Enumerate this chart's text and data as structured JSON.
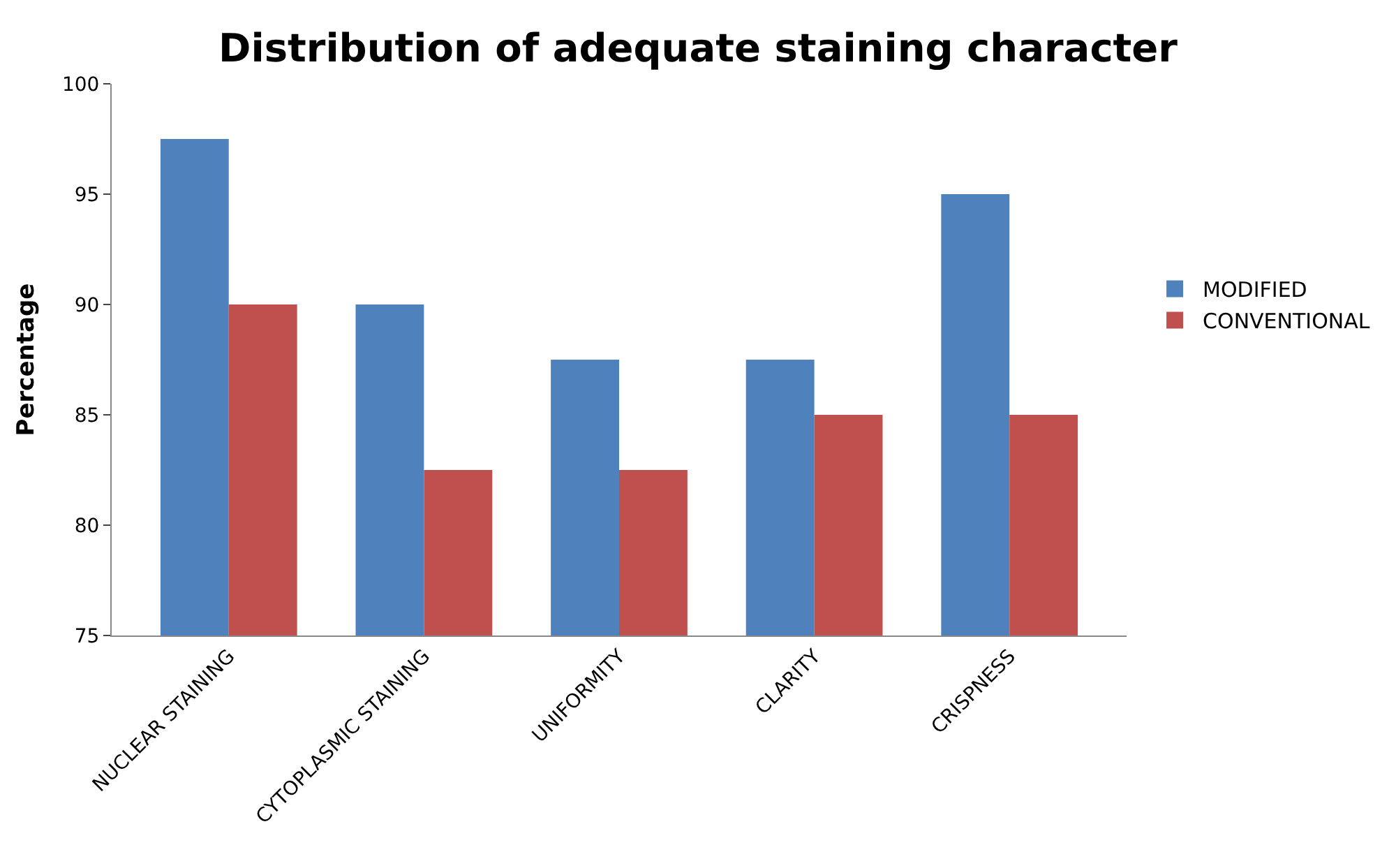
{
  "chart_data": {
    "type": "bar",
    "title": "Distribution of adequate staining character",
    "ylabel": "Percentage",
    "categories": [
      "NUCLEAR STAINING",
      "CYTOPLASMIC STAINING",
      "UNIFORMITY",
      "CLARITY",
      "CRISPNESS"
    ],
    "series": [
      {
        "name": "MODIFIED",
        "color": "#4f81bd",
        "values": [
          97.5,
          90,
          87.5,
          87.5,
          95
        ]
      },
      {
        "name": "CONVENTIONAL",
        "color": "#c0504d",
        "values": [
          90,
          82.5,
          82.5,
          85,
          85
        ]
      }
    ],
    "ylim": [
      75,
      100
    ],
    "yticks": [
      75,
      80,
      85,
      90,
      95,
      100
    ],
    "grid": false,
    "legend": "right"
  }
}
